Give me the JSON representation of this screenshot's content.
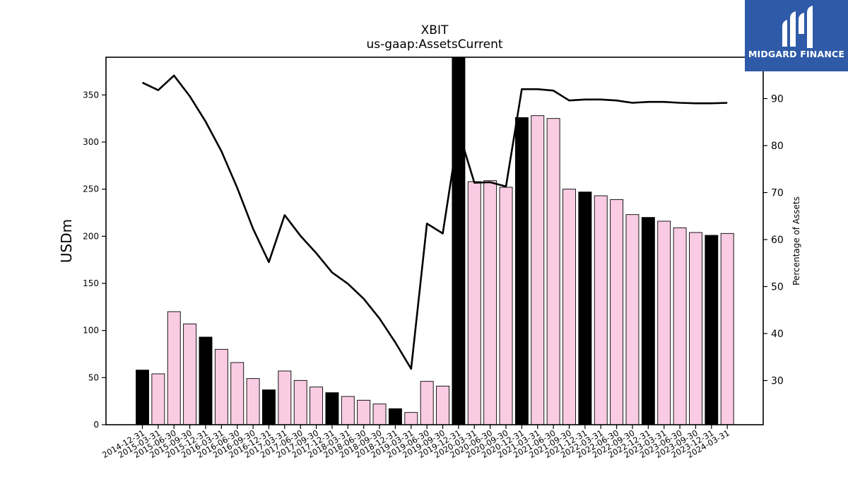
{
  "colors": {
    "year_end_bar": "#000000",
    "other_bar": "#f9cce3",
    "line": "#000000",
    "logo_bg": "#2f5aa8"
  },
  "logo": {
    "text": "MIDGARD FINANCE",
    "icon": "midgard-logo-icon"
  },
  "chart_data": {
    "type": "bar",
    "title": "XBIT",
    "subtitle": "us-gaap:AssetsCurrent",
    "ylabel": "USDm",
    "y2label": "Percentage of Assets",
    "ylim": [
      0,
      390
    ],
    "y2lim": [
      20.6,
      98.8
    ],
    "yticks": [
      0,
      50,
      100,
      150,
      200,
      250,
      300,
      350
    ],
    "y2ticks": [
      30,
      40,
      50,
      60,
      70,
      80,
      90
    ],
    "grid": false,
    "legend": "none",
    "categories": [
      "2014-12-31",
      "2015-03-31",
      "2015-06-30",
      "2015-09-30",
      "2015-12-31",
      "2016-03-31",
      "2016-06-30",
      "2016-09-30",
      "2016-12-31",
      "2017-03-31",
      "2017-06-30",
      "2017-09-30",
      "2017-12-31",
      "2018-03-31",
      "2018-06-30",
      "2018-09-30",
      "2018-12-31",
      "2019-03-31",
      "2019-06-30",
      "2019-09-30",
      "2019-12-31",
      "2020-03-31",
      "2020-06-30",
      "2020-09-30",
      "2020-12-31",
      "2021-03-31",
      "2021-06-30",
      "2021-09-30",
      "2021-12-31",
      "2022-03-31",
      "2022-06-30",
      "2022-09-30",
      "2022-12-31",
      "2023-03-31",
      "2023-06-30",
      "2023-09-30",
      "2023-12-31",
      "2024-03-31"
    ],
    "series": [
      {
        "type": "bar",
        "axis": "left",
        "values": [
          58,
          54,
          120,
          107,
          93,
          80,
          66,
          49,
          37,
          57,
          47,
          40,
          34,
          30,
          26,
          22,
          17,
          13,
          46,
          41,
          390,
          258,
          259,
          252,
          326,
          328,
          325,
          250,
          247,
          243,
          239,
          223,
          220,
          216,
          209,
          204,
          201,
          203
        ],
        "year_end": [
          true,
          false,
          false,
          false,
          true,
          false,
          false,
          false,
          true,
          false,
          false,
          false,
          true,
          false,
          false,
          false,
          true,
          false,
          false,
          false,
          true,
          false,
          false,
          false,
          true,
          false,
          false,
          false,
          true,
          false,
          false,
          false,
          true,
          false,
          false,
          false,
          true,
          false
        ]
      },
      {
        "type": "line",
        "axis": "right",
        "values": [
          93.4,
          91.8,
          94.9,
          90.5,
          85.1,
          78.8,
          71.0,
          62.3,
          55.2,
          65.2,
          60.8,
          57.1,
          53.0,
          50.6,
          47.4,
          43.2,
          38.1,
          32.5,
          63.4,
          61.3,
          83.1,
          72.1,
          72.2,
          71.3,
          92.0,
          92.0,
          91.7,
          89.6,
          89.8,
          89.8,
          89.6,
          89.1,
          89.3,
          89.3,
          89.1,
          89.0,
          89.0,
          89.1
        ]
      }
    ]
  }
}
